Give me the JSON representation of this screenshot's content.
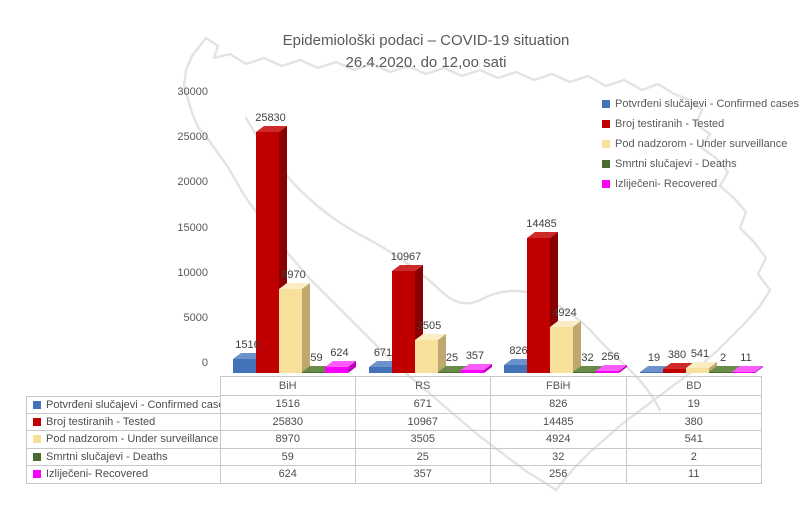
{
  "title": {
    "line1": "Epidemiološki podaci – COVID-19 situation",
    "line2": "26.4.2020. do 12,oo sati"
  },
  "chart_data": {
    "type": "bar",
    "style": "3d-clustered",
    "title": "Epidemiološki podaci – COVID-19 situation 26.4.2020. do 12,oo sati",
    "categories": [
      "BiH",
      "RS",
      "FBiH",
      "BD"
    ],
    "series": [
      {
        "name": "Potvrđeni slučajevi - Confirmed cases",
        "color": "#4472B9",
        "top": "#6C92CC",
        "side": "#2C5187",
        "values": [
          1516,
          671,
          826,
          19
        ]
      },
      {
        "name": "Broj testiranih - Tested",
        "color": "#C00000",
        "top": "#CE2A2A",
        "side": "#8A0000",
        "values": [
          25830,
          10967,
          14485,
          380
        ]
      },
      {
        "name": "Pod nadzorom - Under surveillance",
        "color": "#F7E09A",
        "top": "#FAEDC3",
        "side": "#BFA870",
        "values": [
          8970,
          3505,
          4924,
          541
        ]
      },
      {
        "name": "Smrtni slučajevi - Deaths",
        "color": "#4B6A2D",
        "top": "#6B8C49",
        "side": "#364F1E",
        "values": [
          59,
          25,
          32,
          2
        ]
      },
      {
        "name": "Izliječeni- Recovered",
        "color": "#FA00FA",
        "top": "#FC5CFC",
        "side": "#BD00BD",
        "values": [
          624,
          357,
          256,
          11
        ]
      }
    ],
    "xlabel": "",
    "ylabel": "",
    "ylim": [
      0,
      30000
    ],
    "yticks": [
      0,
      5000,
      10000,
      15000,
      20000,
      25000,
      30000
    ],
    "grid": false,
    "legend_position": "right",
    "data_labels": true,
    "data_table_attached": true
  },
  "colors": {
    "text": "#595959",
    "data_label": "#3f3f3f",
    "table_border": "#c8c8c8",
    "map_outline": "#e3e3e3"
  }
}
